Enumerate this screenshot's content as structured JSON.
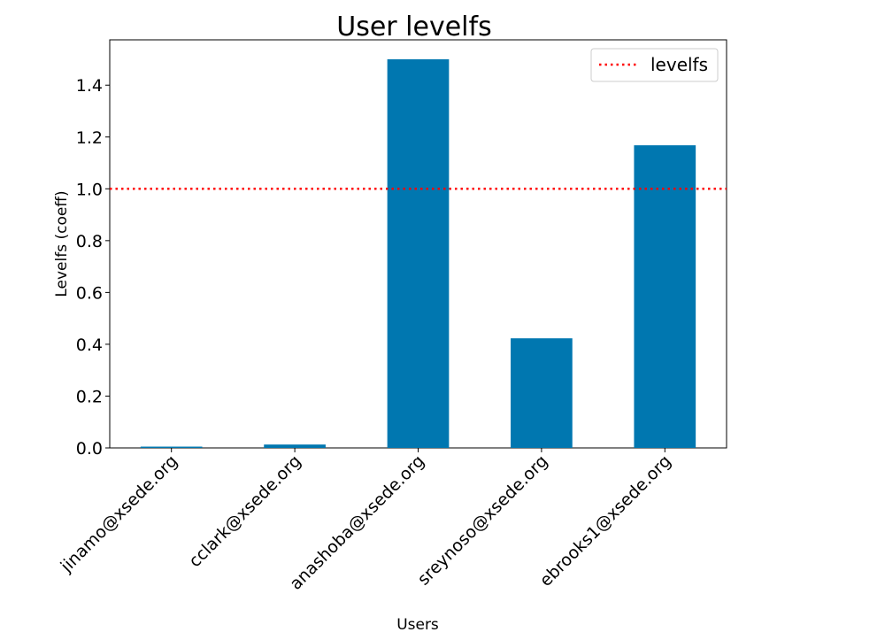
{
  "chart_data": {
    "type": "bar",
    "title": "User levelfs",
    "xlabel": "Users",
    "ylabel": "Levelfs (coeff)",
    "categories": [
      "jinamo@xsede.org",
      "cclark@xsede.org",
      "anashoba@xsede.org",
      "sreynoso@xsede.org",
      "ebrooks1@xsede.org"
    ],
    "values": [
      0.005,
      0.013,
      1.5,
      0.423,
      1.168
    ],
    "ylim": [
      0,
      1.575
    ],
    "yticks": [
      0.0,
      0.2,
      0.4,
      0.6,
      0.8,
      1.0,
      1.2,
      1.4
    ],
    "ytick_labels": [
      "0.0",
      "0.2",
      "0.4",
      "0.6",
      "0.8",
      "1.0",
      "1.2",
      "1.4"
    ],
    "bar_color": "#0077b0",
    "reference_line": {
      "name": "levelfs",
      "value": 1.0,
      "color": "#ff0000",
      "style": "dotted"
    },
    "legend": {
      "position": "top-right",
      "entries": [
        "levelfs"
      ]
    },
    "grid": false
  }
}
